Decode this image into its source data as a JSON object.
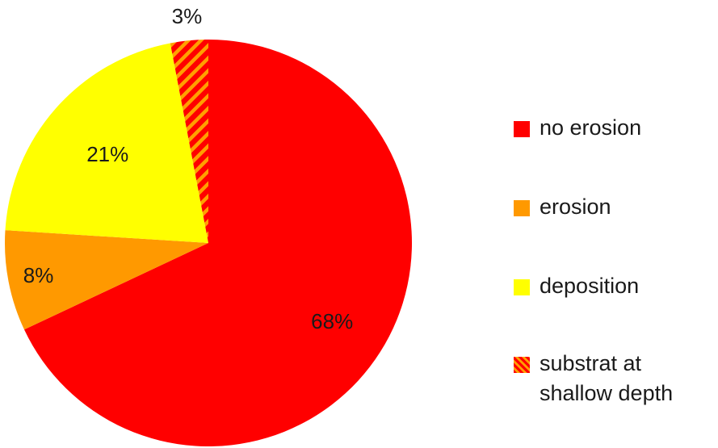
{
  "chart_data": {
    "type": "pie",
    "start_angle_deg": 0,
    "direction": "clockwise",
    "slices": [
      {
        "name": "no erosion",
        "value": 68,
        "label": "68%",
        "color": "#ff0000",
        "pattern": "none"
      },
      {
        "name": "erosion",
        "value": 8,
        "label": "8%",
        "color": "#ff9900",
        "pattern": "none"
      },
      {
        "name": "deposition",
        "value": 21,
        "label": "21%",
        "color": "#ffff00",
        "pattern": "none"
      },
      {
        "name": "substrat at shallow depth",
        "value": 3,
        "label": "3%",
        "color": "#ff0000",
        "pattern": "hatch",
        "pattern_color": "#ffa000"
      }
    ],
    "legend": {
      "placement": "right",
      "entries": [
        {
          "label": "no erosion",
          "color": "#ff0000",
          "pattern": "none"
        },
        {
          "label": "erosion",
          "color": "#ff9900",
          "pattern": "none"
        },
        {
          "label": "deposition",
          "color": "#ffff00",
          "pattern": "none"
        },
        {
          "label": "substrat at\nshallow depth",
          "color": "#ff0000",
          "pattern": "hatch",
          "pattern_color": "#ffa000"
        }
      ]
    }
  }
}
